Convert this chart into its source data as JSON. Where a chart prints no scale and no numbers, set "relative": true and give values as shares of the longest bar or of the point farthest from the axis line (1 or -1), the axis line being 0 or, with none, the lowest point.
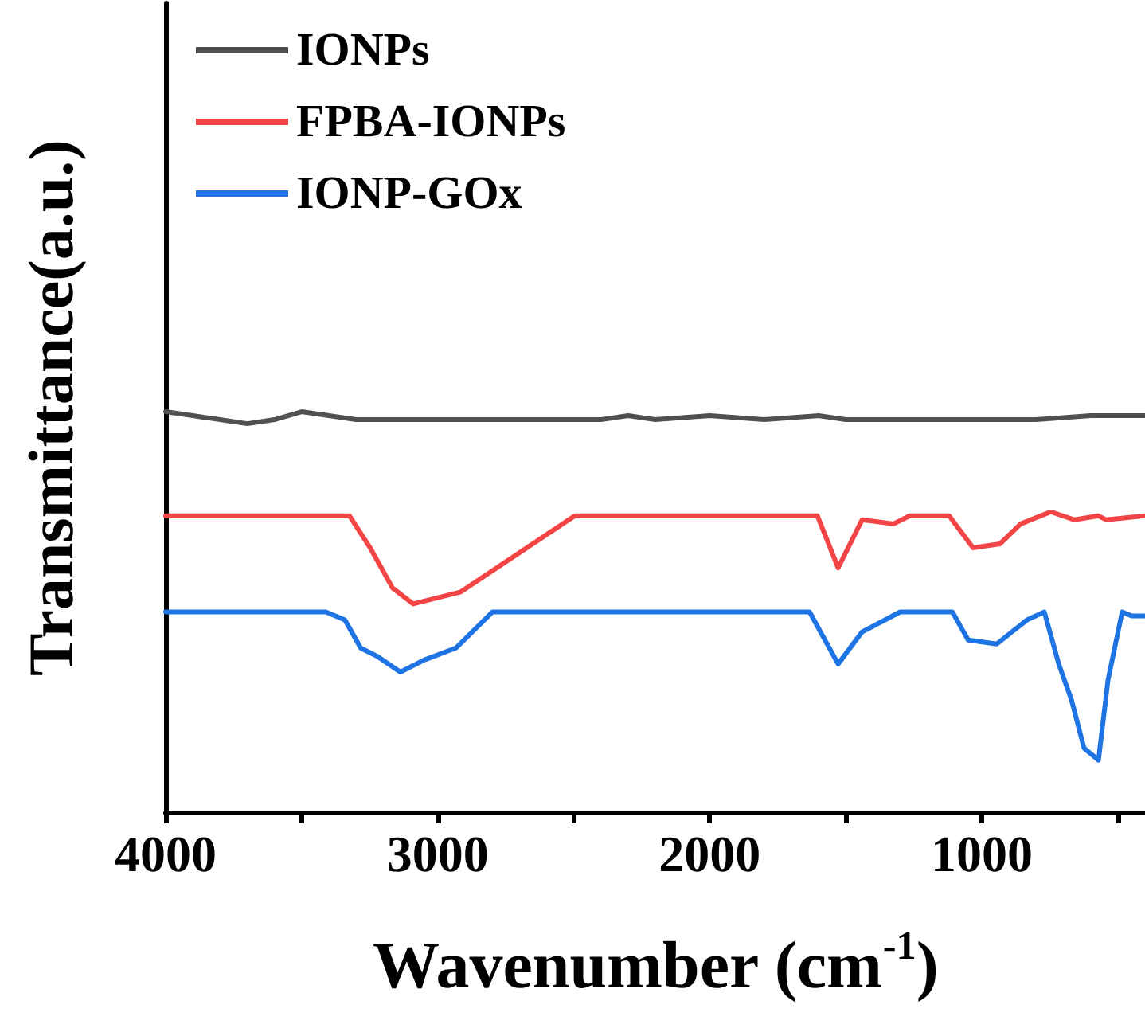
{
  "chart_data": {
    "type": "line",
    "relative": true,
    "xlabel": "Wavenumber (cm$^{-1}$)",
    "ylabel": "Transmittance(a.u.)",
    "xlim": [
      4000,
      400
    ],
    "xticks": [
      4000,
      {
        "value": 3500,
        "label": null
      },
      3000,
      {
        "value": 2500,
        "label": null
      },
      2000,
      {
        "value": 1500,
        "label": null
      },
      1000,
      {
        "value": 500,
        "label": null
      }
    ],
    "legend": "top left",
    "grid": false,
    "marker": "none",
    "line_style": "solid",
    "series": [
      {
        "name": "IONPs",
        "color": "#505050",
        "x": [
          4000,
          3900,
          3800,
          3700,
          3600,
          3500,
          3400,
          3300,
          3200,
          3100,
          3000,
          2800,
          2500,
          2400,
          2300,
          2200,
          2000,
          1800,
          1600,
          1500,
          1300,
          1000,
          800,
          600,
          400
        ],
        "values": [
          1.0,
          0.99,
          0.98,
          0.97,
          0.98,
          1.0,
          0.99,
          0.98,
          0.98,
          0.98,
          0.98,
          0.98,
          0.98,
          0.98,
          0.99,
          0.98,
          0.99,
          0.98,
          0.99,
          0.98,
          0.98,
          0.98,
          0.98,
          0.99,
          0.99
        ]
      },
      {
        "name": "FPBA-IONPs",
        "color": "#f44546",
        "x": [
          4000,
          3700,
          3500,
          3324,
          3248,
          3166,
          3090,
          2915,
          2496,
          2200,
          1800,
          1604,
          1528,
          1440,
          1324,
          1265,
          1120,
          1032,
          933,
          857,
          746,
          659,
          571,
          542,
          400
        ],
        "values": [
          0.74,
          0.74,
          0.74,
          0.74,
          0.66,
          0.56,
          0.52,
          0.55,
          0.74,
          0.74,
          0.74,
          0.74,
          0.61,
          0.73,
          0.72,
          0.74,
          0.74,
          0.66,
          0.67,
          0.72,
          0.75,
          0.73,
          0.74,
          0.73,
          0.74
        ]
      },
      {
        "name": "IONP-GOx",
        "color": "#1f74e3",
        "x": [
          4000,
          3700,
          3411,
          3341,
          3283,
          3224,
          3137,
          3050,
          2933,
          2799,
          2200,
          1633,
          1528,
          1440,
          1300,
          1108,
          1050,
          945,
          834,
          770,
          717,
          670,
          624,
          571,
          536,
          484,
          449,
          400
        ],
        "values": [
          0.5,
          0.5,
          0.5,
          0.48,
          0.41,
          0.39,
          0.35,
          0.38,
          0.41,
          0.5,
          0.5,
          0.5,
          0.37,
          0.45,
          0.5,
          0.5,
          0.43,
          0.42,
          0.48,
          0.5,
          0.37,
          0.28,
          0.16,
          0.13,
          0.33,
          0.5,
          0.49,
          0.49
        ]
      }
    ]
  }
}
